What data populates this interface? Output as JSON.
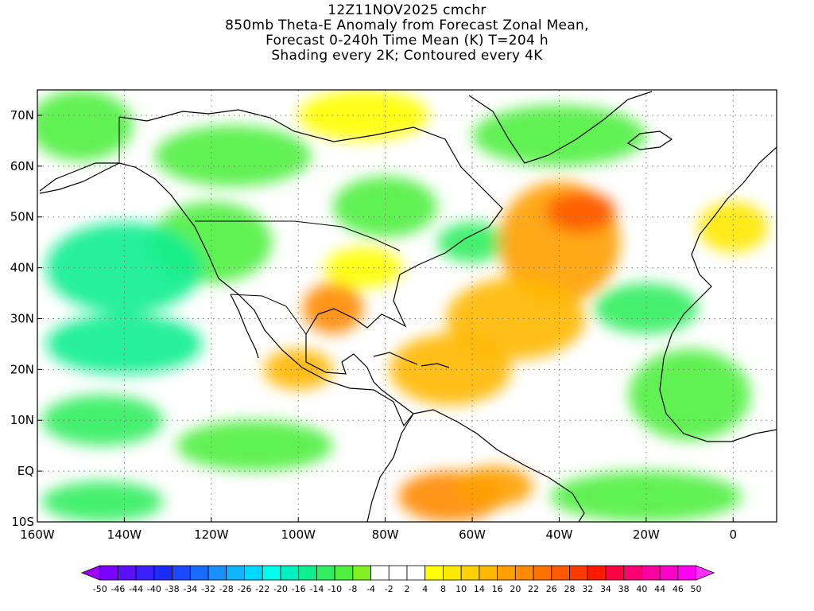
{
  "title_lines": [
    "12Z11NOV2025 cmchr",
    "850mb Theta-E Anomaly from Forecast Zonal Mean,",
    "Forecast 0-240h Time Mean (K) T=204 h",
    "Shading every 2K; Contoured every 4K"
  ],
  "map": {
    "projection": "cylindrical equidistant",
    "lon_range": [
      -160,
      10
    ],
    "lat_range": [
      -10,
      75
    ],
    "lat_ticks": [
      {
        "lat": 70,
        "label": "70N"
      },
      {
        "lat": 60,
        "label": "60N"
      },
      {
        "lat": 50,
        "label": "50N"
      },
      {
        "lat": 40,
        "label": "40N"
      },
      {
        "lat": 30,
        "label": "30N"
      },
      {
        "lat": 20,
        "label": "20N"
      },
      {
        "lat": 10,
        "label": "10N"
      },
      {
        "lat": 0,
        "label": "EQ"
      },
      {
        "lat": -10,
        "label": "10S"
      }
    ],
    "lon_ticks": [
      {
        "lon": -160,
        "label": "160W"
      },
      {
        "lon": -140,
        "label": "140W"
      },
      {
        "lon": -120,
        "label": "120W"
      },
      {
        "lon": -100,
        "label": "100W"
      },
      {
        "lon": -80,
        "label": "80W"
      },
      {
        "lon": -60,
        "label": "60W"
      },
      {
        "lon": -40,
        "label": "40W"
      },
      {
        "lon": -20,
        "label": "20W"
      },
      {
        "lon": 0,
        "label": "0"
      }
    ],
    "grid": true,
    "grid_style": "dotted",
    "field_regions": [
      {
        "lon": -150,
        "lat": 68,
        "rx": 12,
        "ry": 7,
        "value": -8
      },
      {
        "lon": -115,
        "lat": 62,
        "rx": 18,
        "ry": 6,
        "value": -10
      },
      {
        "lon": -85,
        "lat": 70,
        "rx": 15,
        "ry": 5,
        "value": 6
      },
      {
        "lon": -120,
        "lat": 45,
        "rx": 14,
        "ry": 8,
        "value": -10
      },
      {
        "lon": -80,
        "lat": 52,
        "rx": 12,
        "ry": 6,
        "value": -10
      },
      {
        "lon": -60,
        "lat": 45,
        "rx": 8,
        "ry": 4,
        "value": -12
      },
      {
        "lon": -140,
        "lat": 40,
        "rx": 18,
        "ry": 9,
        "value": -14
      },
      {
        "lon": -140,
        "lat": 25,
        "rx": 18,
        "ry": 6,
        "value": -16
      },
      {
        "lon": -145,
        "lat": 10,
        "rx": 14,
        "ry": 5,
        "value": -12
      },
      {
        "lon": -145,
        "lat": -6,
        "rx": 14,
        "ry": 4,
        "value": -12
      },
      {
        "lon": -110,
        "lat": 5,
        "rx": 18,
        "ry": 5,
        "value": -10
      },
      {
        "lon": -40,
        "lat": 66,
        "rx": 20,
        "ry": 6,
        "value": -10
      },
      {
        "lon": -40,
        "lat": 45,
        "rx": 14,
        "ry": 12,
        "value": 18
      },
      {
        "lon": -35,
        "lat": 51,
        "rx": 8,
        "ry": 4,
        "value": 26
      },
      {
        "lon": -50,
        "lat": 30,
        "rx": 16,
        "ry": 8,
        "value": 16
      },
      {
        "lon": -65,
        "lat": 20,
        "rx": 14,
        "ry": 7,
        "value": 14
      },
      {
        "lon": -92,
        "lat": 32,
        "rx": 7,
        "ry": 5,
        "value": 22
      },
      {
        "lon": -100,
        "lat": 20,
        "rx": 8,
        "ry": 4,
        "value": 16
      },
      {
        "lon": -85,
        "lat": 40,
        "rx": 9,
        "ry": 4,
        "value": 6
      },
      {
        "lon": -65,
        "lat": -5,
        "rx": 12,
        "ry": 5,
        "value": 20
      },
      {
        "lon": -55,
        "lat": -3,
        "rx": 9,
        "ry": 4,
        "value": 18
      },
      {
        "lon": -10,
        "lat": 15,
        "rx": 14,
        "ry": 9,
        "value": -10
      },
      {
        "lon": -20,
        "lat": 32,
        "rx": 12,
        "ry": 5,
        "value": -12
      },
      {
        "lon": -20,
        "lat": -5,
        "rx": 22,
        "ry": 5,
        "value": -10
      },
      {
        "lon": 0,
        "lat": 48,
        "rx": 8,
        "ry": 5,
        "value": 10
      }
    ]
  },
  "colorbar": {
    "labels": [
      "-50",
      "-46",
      "-44",
      "-40",
      "-38",
      "-34",
      "-32",
      "-28",
      "-26",
      "-22",
      "-20",
      "-16",
      "-14",
      "-10",
      "-8",
      "-4",
      "-2",
      "2",
      "4",
      "8",
      "10",
      "14",
      "16",
      "20",
      "22",
      "26",
      "28",
      "32",
      "34",
      "38",
      "40",
      "44",
      "46",
      "50"
    ],
    "colors": [
      "#a000ff",
      "#7a00ff",
      "#5a10ff",
      "#3a20ff",
      "#1a2cff",
      "#1a4aff",
      "#1a6aff",
      "#1a90ff",
      "#10b4ff",
      "#00d8ff",
      "#00ffee",
      "#00f0c0",
      "#10ee90",
      "#30ee60",
      "#50f040",
      "#80f020",
      "#ffffff",
      "#ffffff",
      "#ffffff",
      "#ffff00",
      "#ffe800",
      "#ffd000",
      "#ffb800",
      "#ffa000",
      "#ff8a00",
      "#ff7200",
      "#ff5a00",
      "#ff3a00",
      "#ff1a00",
      "#ff0040",
      "#ff0070",
      "#ff00a0",
      "#ff00c8",
      "#ff00f0",
      "#ff30ff"
    ]
  }
}
